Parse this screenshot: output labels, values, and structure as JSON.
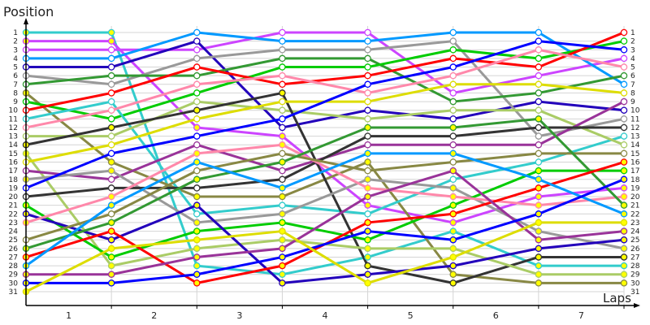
{
  "chart_data": {
    "type": "line",
    "ylabel": "Position",
    "xlabel": "Laps",
    "x_tick_labels": [
      "1",
      "2",
      "3",
      "4",
      "5",
      "6",
      "7"
    ],
    "laps": [
      0,
      1,
      2,
      3,
      4,
      5,
      6,
      7
    ],
    "ylim": [
      1,
      31
    ],
    "y_inverted": true,
    "grid": true,
    "series": [
      {
        "color": "#33cccc",
        "marker": "#ffff00",
        "positions": [
          1,
          1,
          28,
          29,
          27,
          24,
          28,
          28
        ]
      },
      {
        "color": "#cc44ff",
        "marker": "#ffff00",
        "positions": [
          2,
          2,
          12,
          13,
          21,
          23,
          20,
          19
        ]
      },
      {
        "color": "#cc44ff",
        "marker": "#ffffff",
        "positions": [
          3,
          3,
          3,
          1,
          1,
          8,
          6,
          4
        ]
      },
      {
        "color": "#0099ff",
        "marker": "#ffffff",
        "positions": [
          4,
          4,
          1,
          2,
          2,
          1,
          1,
          7
        ]
      },
      {
        "color": "#2200bb",
        "marker": "#ffffff",
        "positions": [
          5,
          5,
          2,
          12,
          10,
          11,
          9,
          10
        ]
      },
      {
        "color": "#999999",
        "marker": "#ffffff",
        "positions": [
          6,
          7,
          4,
          3,
          3,
          2,
          13,
          11
        ]
      },
      {
        "color": "#339933",
        "marker": "#ffffff",
        "positions": [
          7,
          6,
          6,
          4,
          4,
          9,
          8,
          6
        ]
      },
      {
        "color": "#888844",
        "marker": "#ffff00",
        "positions": [
          8,
          16,
          20,
          20,
          16,
          29,
          30,
          30
        ]
      },
      {
        "color": "#00cc00",
        "marker": "#ffffff",
        "positions": [
          9,
          11,
          8,
          5,
          5,
          3,
          4,
          2
        ]
      },
      {
        "color": "#ff0000",
        "marker": "#ffffff",
        "positions": [
          10,
          8,
          5,
          7,
          6,
          4,
          5,
          1
        ]
      },
      {
        "color": "#33cccc",
        "marker": "#ffffff",
        "positions": [
          11,
          9,
          22,
          21,
          22,
          18,
          16,
          13
        ]
      },
      {
        "color": "#ff88aa",
        "marker": "#ffffff",
        "positions": [
          12,
          10,
          7,
          6,
          8,
          6,
          3,
          5
        ]
      },
      {
        "color": "#aacc66",
        "marker": "#ffffff",
        "positions": [
          13,
          13,
          9,
          10,
          11,
          10,
          10,
          14
        ]
      },
      {
        "color": "#333333",
        "marker": "#ffff00",
        "positions": [
          14,
          12,
          10,
          8,
          28,
          30,
          27,
          27
        ]
      },
      {
        "color": "#aacc66",
        "marker": "#ffff00",
        "positions": [
          15,
          28,
          26,
          25,
          26,
          26,
          29,
          29
        ]
      },
      {
        "color": "#dddd00",
        "marker": "#ffffff",
        "positions": [
          16,
          14,
          11,
          9,
          9,
          7,
          7,
          8
        ]
      },
      {
        "color": "#993399",
        "marker": "#ffffff",
        "positions": [
          17,
          18,
          14,
          17,
          14,
          14,
          14,
          9
        ]
      },
      {
        "color": "#999999",
        "marker": "#ffff00",
        "positions": [
          18,
          17,
          23,
          22,
          18,
          19,
          24,
          26
        ]
      },
      {
        "color": "#0000ff",
        "marker": "#ffffff",
        "positions": [
          19,
          15,
          13,
          11,
          7,
          5,
          2,
          3
        ]
      },
      {
        "color": "#333333",
        "marker": "#ffffff",
        "positions": [
          20,
          19,
          19,
          18,
          13,
          13,
          12,
          12
        ]
      },
      {
        "color": "#00cc00",
        "marker": "#ffff00",
        "positions": [
          21,
          27,
          24,
          23,
          25,
          21,
          17,
          17
        ]
      },
      {
        "color": "#2200bb",
        "marker": "#ffff00",
        "positions": [
          22,
          25,
          21,
          30,
          29,
          28,
          26,
          25
        ]
      },
      {
        "color": "#ff88aa",
        "marker": "#ffff00",
        "positions": [
          23,
          20,
          15,
          14,
          19,
          20,
          21,
          20
        ]
      },
      {
        "color": "#888844",
        "marker": "#ffffff",
        "positions": [
          25,
          22,
          17,
          15,
          17,
          16,
          15,
          15
        ]
      },
      {
        "color": "#339933",
        "marker": "#ffff00",
        "positions": [
          26,
          23,
          18,
          16,
          12,
          12,
          11,
          21
        ]
      },
      {
        "color": "#ff0000",
        "marker": "#ffff00",
        "positions": [
          27,
          24,
          30,
          28,
          23,
          22,
          19,
          16
        ]
      },
      {
        "color": "#0099ff",
        "marker": "#ffff00",
        "positions": [
          28,
          21,
          16,
          19,
          15,
          15,
          18,
          22
        ]
      },
      {
        "color": "#993399",
        "marker": "#ffff00",
        "positions": [
          29,
          29,
          27,
          26,
          20,
          17,
          25,
          24
        ]
      },
      {
        "color": "#0000ff",
        "marker": "#ffff00",
        "positions": [
          30,
          30,
          29,
          27,
          24,
          25,
          22,
          18
        ]
      },
      {
        "color": "#dddd00",
        "marker": "#ffff00",
        "positions": [
          31,
          26,
          25,
          24,
          30,
          27,
          23,
          23
        ]
      }
    ]
  }
}
